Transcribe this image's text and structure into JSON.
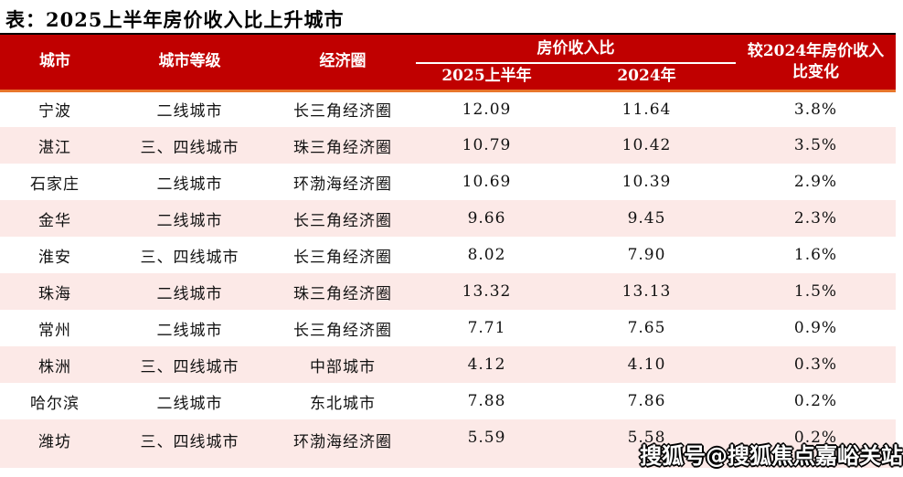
{
  "page_title": "表：2025上半年房价收入比上升城市",
  "colors": {
    "header_bg": "#C00000",
    "header_text": "#FFFFFF",
    "accent_underline": "#E8762C",
    "alt_row_bg": "#FCE9E7",
    "top_rule": "#000000"
  },
  "table": {
    "columns": {
      "city": "城市",
      "tier": "城市等级",
      "circle": "经济圈",
      "ratio_group": "房价收入比",
      "h1_2025": "2025上半年",
      "y2024": "2024年",
      "change": "较2024年房价收入比变化"
    },
    "rows": [
      {
        "city": "宁波",
        "tier": "二线城市",
        "circle": "长三角经济圈",
        "h1_2025": "12.09",
        "y2024": "11.64",
        "change": "3.8%"
      },
      {
        "city": "湛江",
        "tier": "三、四线城市",
        "circle": "珠三角经济圈",
        "h1_2025": "10.79",
        "y2024": "10.42",
        "change": "3.5%"
      },
      {
        "city": "石家庄",
        "tier": "二线城市",
        "circle": "环渤海经济圈",
        "h1_2025": "10.69",
        "y2024": "10.39",
        "change": "2.9%"
      },
      {
        "city": "金华",
        "tier": "二线城市",
        "circle": "长三角经济圈",
        "h1_2025": "9.66",
        "y2024": "9.45",
        "change": "2.3%"
      },
      {
        "city": "淮安",
        "tier": "三、四线城市",
        "circle": "长三角经济圈",
        "h1_2025": "8.02",
        "y2024": "7.90",
        "change": "1.6%"
      },
      {
        "city": "珠海",
        "tier": "二线城市",
        "circle": "珠三角经济圈",
        "h1_2025": "13.32",
        "y2024": "13.13",
        "change": "1.5%"
      },
      {
        "city": "常州",
        "tier": "二线城市",
        "circle": "长三角经济圈",
        "h1_2025": "7.71",
        "y2024": "7.65",
        "change": "0.9%"
      },
      {
        "city": "株洲",
        "tier": "三、四线城市",
        "circle": "中部城市",
        "h1_2025": "4.12",
        "y2024": "4.10",
        "change": "0.3%"
      },
      {
        "city": "哈尔滨",
        "tier": "二线城市",
        "circle": "东北城市",
        "h1_2025": "7.88",
        "y2024": "7.86",
        "change": "0.2%"
      },
      {
        "city": "潍坊",
        "tier": "三、四线城市",
        "circle": "环渤海经济圈",
        "h1_2025": "5.59",
        "y2024": "5.58",
        "change": "0.2%"
      }
    ]
  },
  "watermark": "搜狐号@搜狐焦点嘉峪关站",
  "chart_data": {
    "type": "table",
    "title": "表：2025上半年房价收入比上升城市",
    "columns": [
      "城市",
      "城市等级",
      "经济圈",
      "房价收入比 2025上半年",
      "房价收入比 2024年",
      "较2024年房价收入比变化"
    ],
    "rows": [
      [
        "宁波",
        "二线城市",
        "长三角经济圈",
        12.09,
        11.64,
        "3.8%"
      ],
      [
        "湛江",
        "三、四线城市",
        "珠三角经济圈",
        10.79,
        10.42,
        "3.5%"
      ],
      [
        "石家庄",
        "二线城市",
        "环渤海经济圈",
        10.69,
        10.39,
        "2.9%"
      ],
      [
        "金华",
        "二线城市",
        "长三角经济圈",
        9.66,
        9.45,
        "2.3%"
      ],
      [
        "淮安",
        "三、四线城市",
        "长三角经济圈",
        8.02,
        7.9,
        "1.6%"
      ],
      [
        "珠海",
        "二线城市",
        "珠三角经济圈",
        13.32,
        13.13,
        "1.5%"
      ],
      [
        "常州",
        "二线城市",
        "长三角经济圈",
        7.71,
        7.65,
        "0.9%"
      ],
      [
        "株洲",
        "三、四线城市",
        "中部城市",
        4.12,
        4.1,
        "0.3%"
      ],
      [
        "哈尔滨",
        "二线城市",
        "东北城市",
        7.88,
        7.86,
        "0.2%"
      ],
      [
        "潍坊",
        "三、四线城市",
        "环渤海经济圈",
        5.59,
        5.58,
        "0.2%"
      ]
    ]
  }
}
